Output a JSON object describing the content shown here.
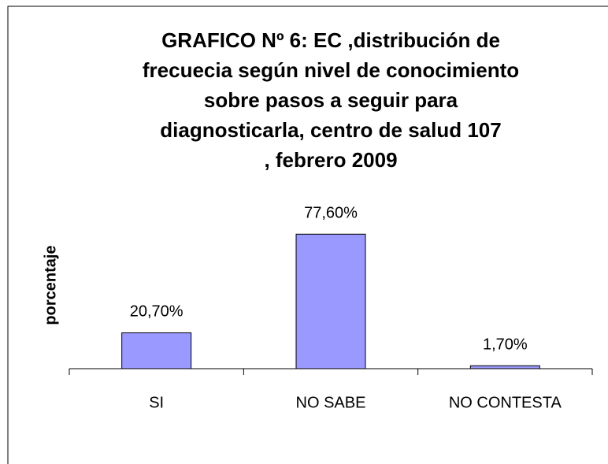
{
  "chart_data": {
    "type": "bar",
    "title": [
      "GRAFICO Nº 6: EC ,distribución de",
      "frecuecia según  nivel de conocimiento",
      "sobre pasos a seguir para",
      "diagnosticarla, centro de salud 107",
      ", febrero 2009"
    ],
    "y_label": "porcentaje",
    "categories": [
      "SI",
      "NO SABE",
      "NO CONTESTA"
    ],
    "values": [
      20.7,
      77.6,
      1.7
    ],
    "value_labels": [
      "20,70%",
      "77,60%",
      "1,70%"
    ],
    "color": "#9999ff",
    "ylim": [
      0,
      100
    ]
  }
}
